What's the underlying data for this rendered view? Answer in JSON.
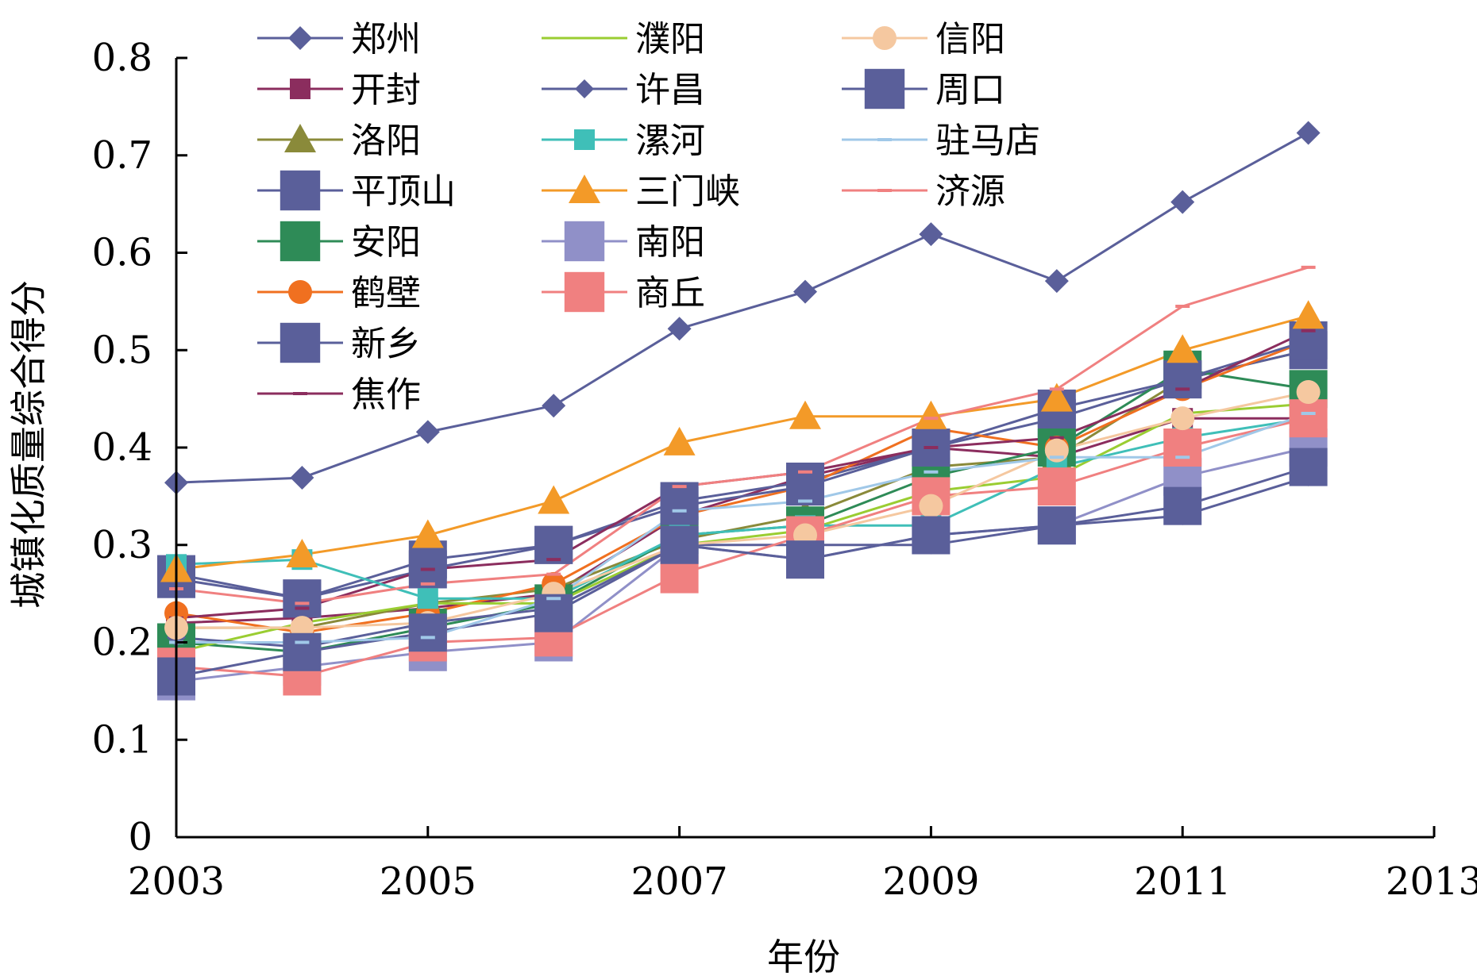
{
  "chart_data": {
    "type": "line",
    "title": "",
    "xlabel": "年份",
    "ylabel": "城镇化质量综合得分",
    "x": [
      2003,
      2004,
      2005,
      2006,
      2007,
      2008,
      2009,
      2010,
      2011,
      2012
    ],
    "xlim": [
      2003,
      2013
    ],
    "ylim": [
      0,
      0.8
    ],
    "x_ticks": [
      "2003",
      "2005",
      "2007",
      "2009",
      "2011",
      "2013"
    ],
    "y_ticks": [
      "0",
      "0.1",
      "0.2",
      "0.3",
      "0.4",
      "0.5",
      "0.6",
      "0.7",
      "0.8"
    ],
    "grid": false,
    "legend_position": "top",
    "series": [
      {
        "name": "郑州",
        "color": "#5a5f9a",
        "marker": "diamond",
        "values": [
          0.364,
          0.369,
          0.416,
          0.443,
          0.522,
          0.56,
          0.619,
          0.571,
          0.652,
          0.723
        ]
      },
      {
        "name": "开封",
        "color": "#8b2d5e",
        "marker": "square",
        "values": [
          0.22,
          0.225,
          0.235,
          0.25,
          0.33,
          0.37,
          0.4,
          0.39,
          0.43,
          0.43
        ]
      },
      {
        "name": "洛阳",
        "color": "#8a8a3a",
        "marker": "triangle",
        "values": [
          0.215,
          0.215,
          0.24,
          0.255,
          0.305,
          0.33,
          0.38,
          0.39,
          0.47,
          0.5
        ]
      },
      {
        "name": "平顶山",
        "color": "#5a5f9a",
        "marker": "bigsquare",
        "values": [
          0.27,
          0.245,
          0.285,
          0.3,
          0.345,
          0.365,
          0.4,
          0.43,
          0.47,
          0.5
        ]
      },
      {
        "name": "安阳",
        "color": "#2e8b57",
        "marker": "bigsquare",
        "values": [
          0.2,
          0.19,
          0.215,
          0.24,
          0.31,
          0.32,
          0.37,
          0.4,
          0.48,
          0.46
        ]
      },
      {
        "name": "鹤壁",
        "color": "#f07020",
        "marker": "circle",
        "values": [
          0.23,
          0.21,
          0.23,
          0.26,
          0.33,
          0.36,
          0.42,
          0.4,
          0.46,
          0.51
        ]
      },
      {
        "name": "新乡",
        "color": "#5a5f9a",
        "marker": "bigsquare",
        "values": [
          0.265,
          0.245,
          0.275,
          0.3,
          0.34,
          0.36,
          0.4,
          0.44,
          0.47,
          0.51
        ]
      },
      {
        "name": "焦作",
        "color": "#8b2d5e",
        "marker": "dash",
        "values": [
          0.225,
          0.235,
          0.275,
          0.285,
          0.36,
          0.375,
          0.4,
          0.41,
          0.46,
          0.52
        ]
      },
      {
        "name": "濮阳",
        "color": "#9acd32",
        "marker": "none",
        "values": [
          0.19,
          0.22,
          0.24,
          0.24,
          0.3,
          0.315,
          0.355,
          0.37,
          0.435,
          0.445
        ]
      },
      {
        "name": "许昌",
        "color": "#5a5f9a",
        "marker": "diamond-small",
        "values": [
          0.205,
          0.195,
          0.22,
          0.235,
          0.3,
          0.3,
          0.3,
          0.32,
          0.33,
          0.37
        ]
      },
      {
        "name": "漯河",
        "color": "#3fbfb8",
        "marker": "square",
        "values": [
          0.28,
          0.285,
          0.245,
          0.245,
          0.31,
          0.32,
          0.32,
          0.38,
          0.41,
          0.43
        ]
      },
      {
        "name": "三门峡",
        "color": "#f39a28",
        "marker": "triangle",
        "values": [
          0.275,
          0.29,
          0.31,
          0.345,
          0.405,
          0.432,
          0.432,
          0.45,
          0.5,
          0.535
        ]
      },
      {
        "name": "南阳",
        "color": "#9090c8",
        "marker": "bigsquare",
        "values": [
          0.16,
          0.175,
          0.19,
          0.2,
          0.3,
          0.285,
          0.31,
          0.32,
          0.37,
          0.4
        ]
      },
      {
        "name": "商丘",
        "color": "#f08080",
        "marker": "bigsquare",
        "values": [
          0.175,
          0.165,
          0.2,
          0.205,
          0.27,
          0.31,
          0.35,
          0.36,
          0.4,
          0.43
        ]
      },
      {
        "name": "信阳",
        "color": "#f5c8a0",
        "marker": "circle",
        "values": [
          0.215,
          0.215,
          0.22,
          0.25,
          0.3,
          0.31,
          0.34,
          0.397,
          0.43,
          0.457
        ]
      },
      {
        "name": "周口",
        "color": "#5a5f9a",
        "marker": "bigsquare",
        "values": [
          0.165,
          0.19,
          0.21,
          0.23,
          0.3,
          0.285,
          0.31,
          0.32,
          0.34,
          0.38
        ]
      },
      {
        "name": "驻马店",
        "color": "#a0c8e8",
        "marker": "dash",
        "values": [
          0.2,
          0.2,
          0.205,
          0.245,
          0.335,
          0.345,
          0.375,
          0.39,
          0.39,
          0.435
        ]
      },
      {
        "name": "济源",
        "color": "#f08080",
        "marker": "dash",
        "values": [
          0.255,
          0.24,
          0.26,
          0.27,
          0.36,
          0.375,
          0.43,
          0.46,
          0.545,
          0.585
        ]
      }
    ]
  }
}
